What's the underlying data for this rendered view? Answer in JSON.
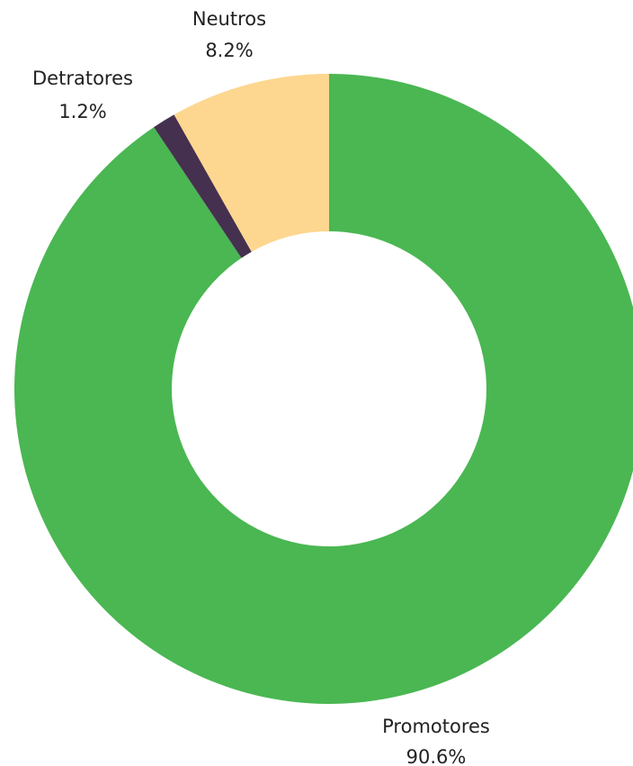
{
  "chart_data": {
    "type": "donut",
    "categories": [
      "Promotores",
      "Detratores",
      "Neutros"
    ],
    "values": [
      90.6,
      1.2,
      8.2
    ],
    "value_labels": [
      "90.6%",
      "1.2%",
      "8.2%"
    ],
    "colors": [
      "#4ab752",
      "#45304f",
      "#fdd78f"
    ]
  }
}
